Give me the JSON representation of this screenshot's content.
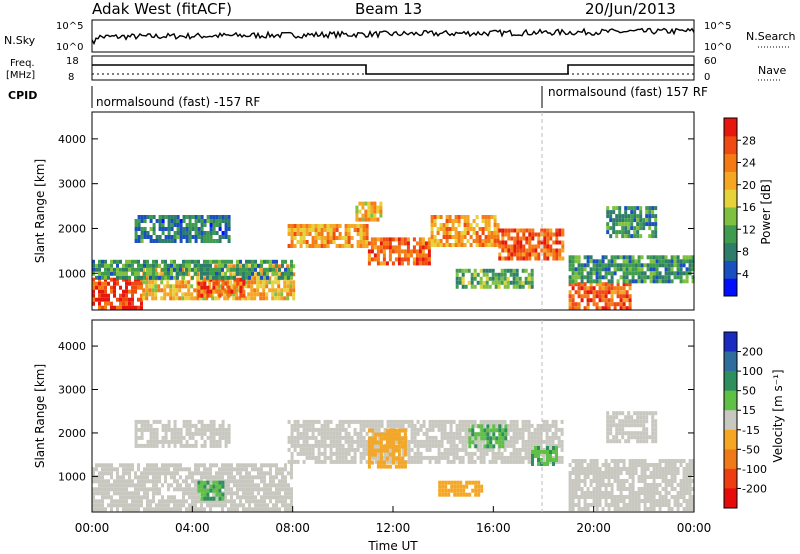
{
  "header": {
    "title": "Adak West (fitACF)",
    "beam": "Beam 13",
    "date": "20/Jun/2013"
  },
  "labels": {
    "nsky": "N.Sky",
    "nsearch": "N.Search",
    "freq_l1": "Freq.",
    "freq_l2": "[MHz]",
    "nave": "Nave",
    "cpid": "CPID"
  },
  "noise_panel": {
    "left_ticks": [
      "10^5",
      "10^0"
    ],
    "right_ticks": [
      "10^5",
      "10^0"
    ]
  },
  "freq_panel": {
    "left_ticks": [
      "18",
      "8"
    ],
    "right_ticks": [
      "60",
      "0"
    ]
  },
  "cpid_panel": {
    "segments": [
      {
        "text": "normalsound (fast) -157 RF",
        "start_hour": 0
      },
      {
        "text": "normalsound (fast) 157 RF",
        "start_hour": 18
      }
    ]
  },
  "colorbars": {
    "power": {
      "label": "Power [dB]",
      "ticks": [
        "4",
        "8",
        "12",
        "16",
        "20",
        "24",
        "28"
      ],
      "colors": [
        "#0010ff",
        "#1a4fbf",
        "#2e7d6a",
        "#3f9c4f",
        "#7fc040",
        "#e6d23a",
        "#f5a623",
        "#f47a16",
        "#ef4a12",
        "#e6170e"
      ]
    },
    "velocity": {
      "label": "Velocity [m s⁻¹]",
      "ticks": [
        "200",
        "100",
        "50",
        "15",
        "-15",
        "-50",
        "-100",
        "-200"
      ],
      "colors": [
        "#1a2bbf",
        "#2f6e9c",
        "#2e8f5e",
        "#5fc046",
        "#c8c8c0",
        "#f5a623",
        "#f07a18",
        "#ee3d10",
        "#e60a0a"
      ]
    }
  },
  "chart_data": [
    {
      "type": "heatmap",
      "name": "power",
      "ylabel": "Slant Range [km]",
      "ylim": [
        180,
        4600
      ],
      "xlim": [
        0,
        24
      ],
      "yticks": [
        "1000",
        "2000",
        "3000",
        "4000"
      ],
      "regions": [
        {
          "t0": 0.0,
          "t1": 2.0,
          "r0": 250,
          "r1": 900,
          "level": 28
        },
        {
          "t0": 2.0,
          "t1": 8.0,
          "r0": 400,
          "r1": 1200,
          "level": 20
        },
        {
          "t0": 4.2,
          "t1": 6.0,
          "r0": 500,
          "r1": 900,
          "level": 26
        },
        {
          "t0": 0.0,
          "t1": 8.0,
          "r0": 900,
          "r1": 1300,
          "level": 10
        },
        {
          "t0": 1.7,
          "t1": 5.5,
          "r0": 1700,
          "r1": 2300,
          "level": 8
        },
        {
          "t0": 7.8,
          "t1": 11.0,
          "r0": 1600,
          "r1": 2100,
          "level": 22
        },
        {
          "t0": 11.0,
          "t1": 13.5,
          "r0": 1200,
          "r1": 1800,
          "level": 26
        },
        {
          "t0": 13.5,
          "t1": 16.2,
          "r0": 1600,
          "r1": 2300,
          "level": 22
        },
        {
          "t0": 16.2,
          "t1": 18.8,
          "r0": 1300,
          "r1": 2000,
          "level": 26
        },
        {
          "t0": 19.0,
          "t1": 21.5,
          "r0": 250,
          "r1": 800,
          "level": 26
        },
        {
          "t0": 19.0,
          "t1": 24.0,
          "r0": 800,
          "r1": 1400,
          "level": 10
        },
        {
          "t0": 14.5,
          "t1": 17.5,
          "r0": 700,
          "r1": 1100,
          "level": 12
        },
        {
          "t0": 10.5,
          "t1": 11.5,
          "r0": 2200,
          "r1": 2600,
          "level": 20
        },
        {
          "t0": 20.5,
          "t1": 22.5,
          "r0": 1800,
          "r1": 2500,
          "level": 10
        }
      ]
    },
    {
      "type": "heatmap",
      "name": "velocity",
      "ylabel": "Slant Range [km]",
      "xlabel": "Time UT",
      "ylim": [
        180,
        4600
      ],
      "xlim": [
        0,
        24
      ],
      "yticks": [
        "1000",
        "2000",
        "3000",
        "4000"
      ],
      "xticks": [
        "00:00",
        "04:00",
        "08:00",
        "12:00",
        "16:00",
        "20:00",
        "00:00"
      ],
      "regions": [
        {
          "t0": 0.0,
          "t1": 8.0,
          "r0": 250,
          "r1": 1300,
          "level": 0
        },
        {
          "t0": 4.2,
          "t1": 5.2,
          "r0": 500,
          "r1": 900,
          "level": 30
        },
        {
          "t0": 1.7,
          "t1": 5.5,
          "r0": 1700,
          "r1": 2300,
          "level": 0
        },
        {
          "t0": 7.8,
          "t1": 18.8,
          "r0": 1300,
          "r1": 2300,
          "level": 0
        },
        {
          "t0": 11.0,
          "t1": 12.5,
          "r0": 1200,
          "r1": 2100,
          "level": -40
        },
        {
          "t0": 15.0,
          "t1": 16.5,
          "r0": 1700,
          "r1": 2200,
          "level": 30
        },
        {
          "t0": 17.5,
          "t1": 18.5,
          "r0": 1300,
          "r1": 1700,
          "level": 30
        },
        {
          "t0": 13.8,
          "t1": 15.5,
          "r0": 600,
          "r1": 900,
          "level": -40
        },
        {
          "t0": 19.0,
          "t1": 24.0,
          "r0": 250,
          "r1": 1400,
          "level": 0
        },
        {
          "t0": 20.5,
          "t1": 22.5,
          "r0": 1800,
          "r1": 2500,
          "level": 0
        }
      ]
    }
  ]
}
